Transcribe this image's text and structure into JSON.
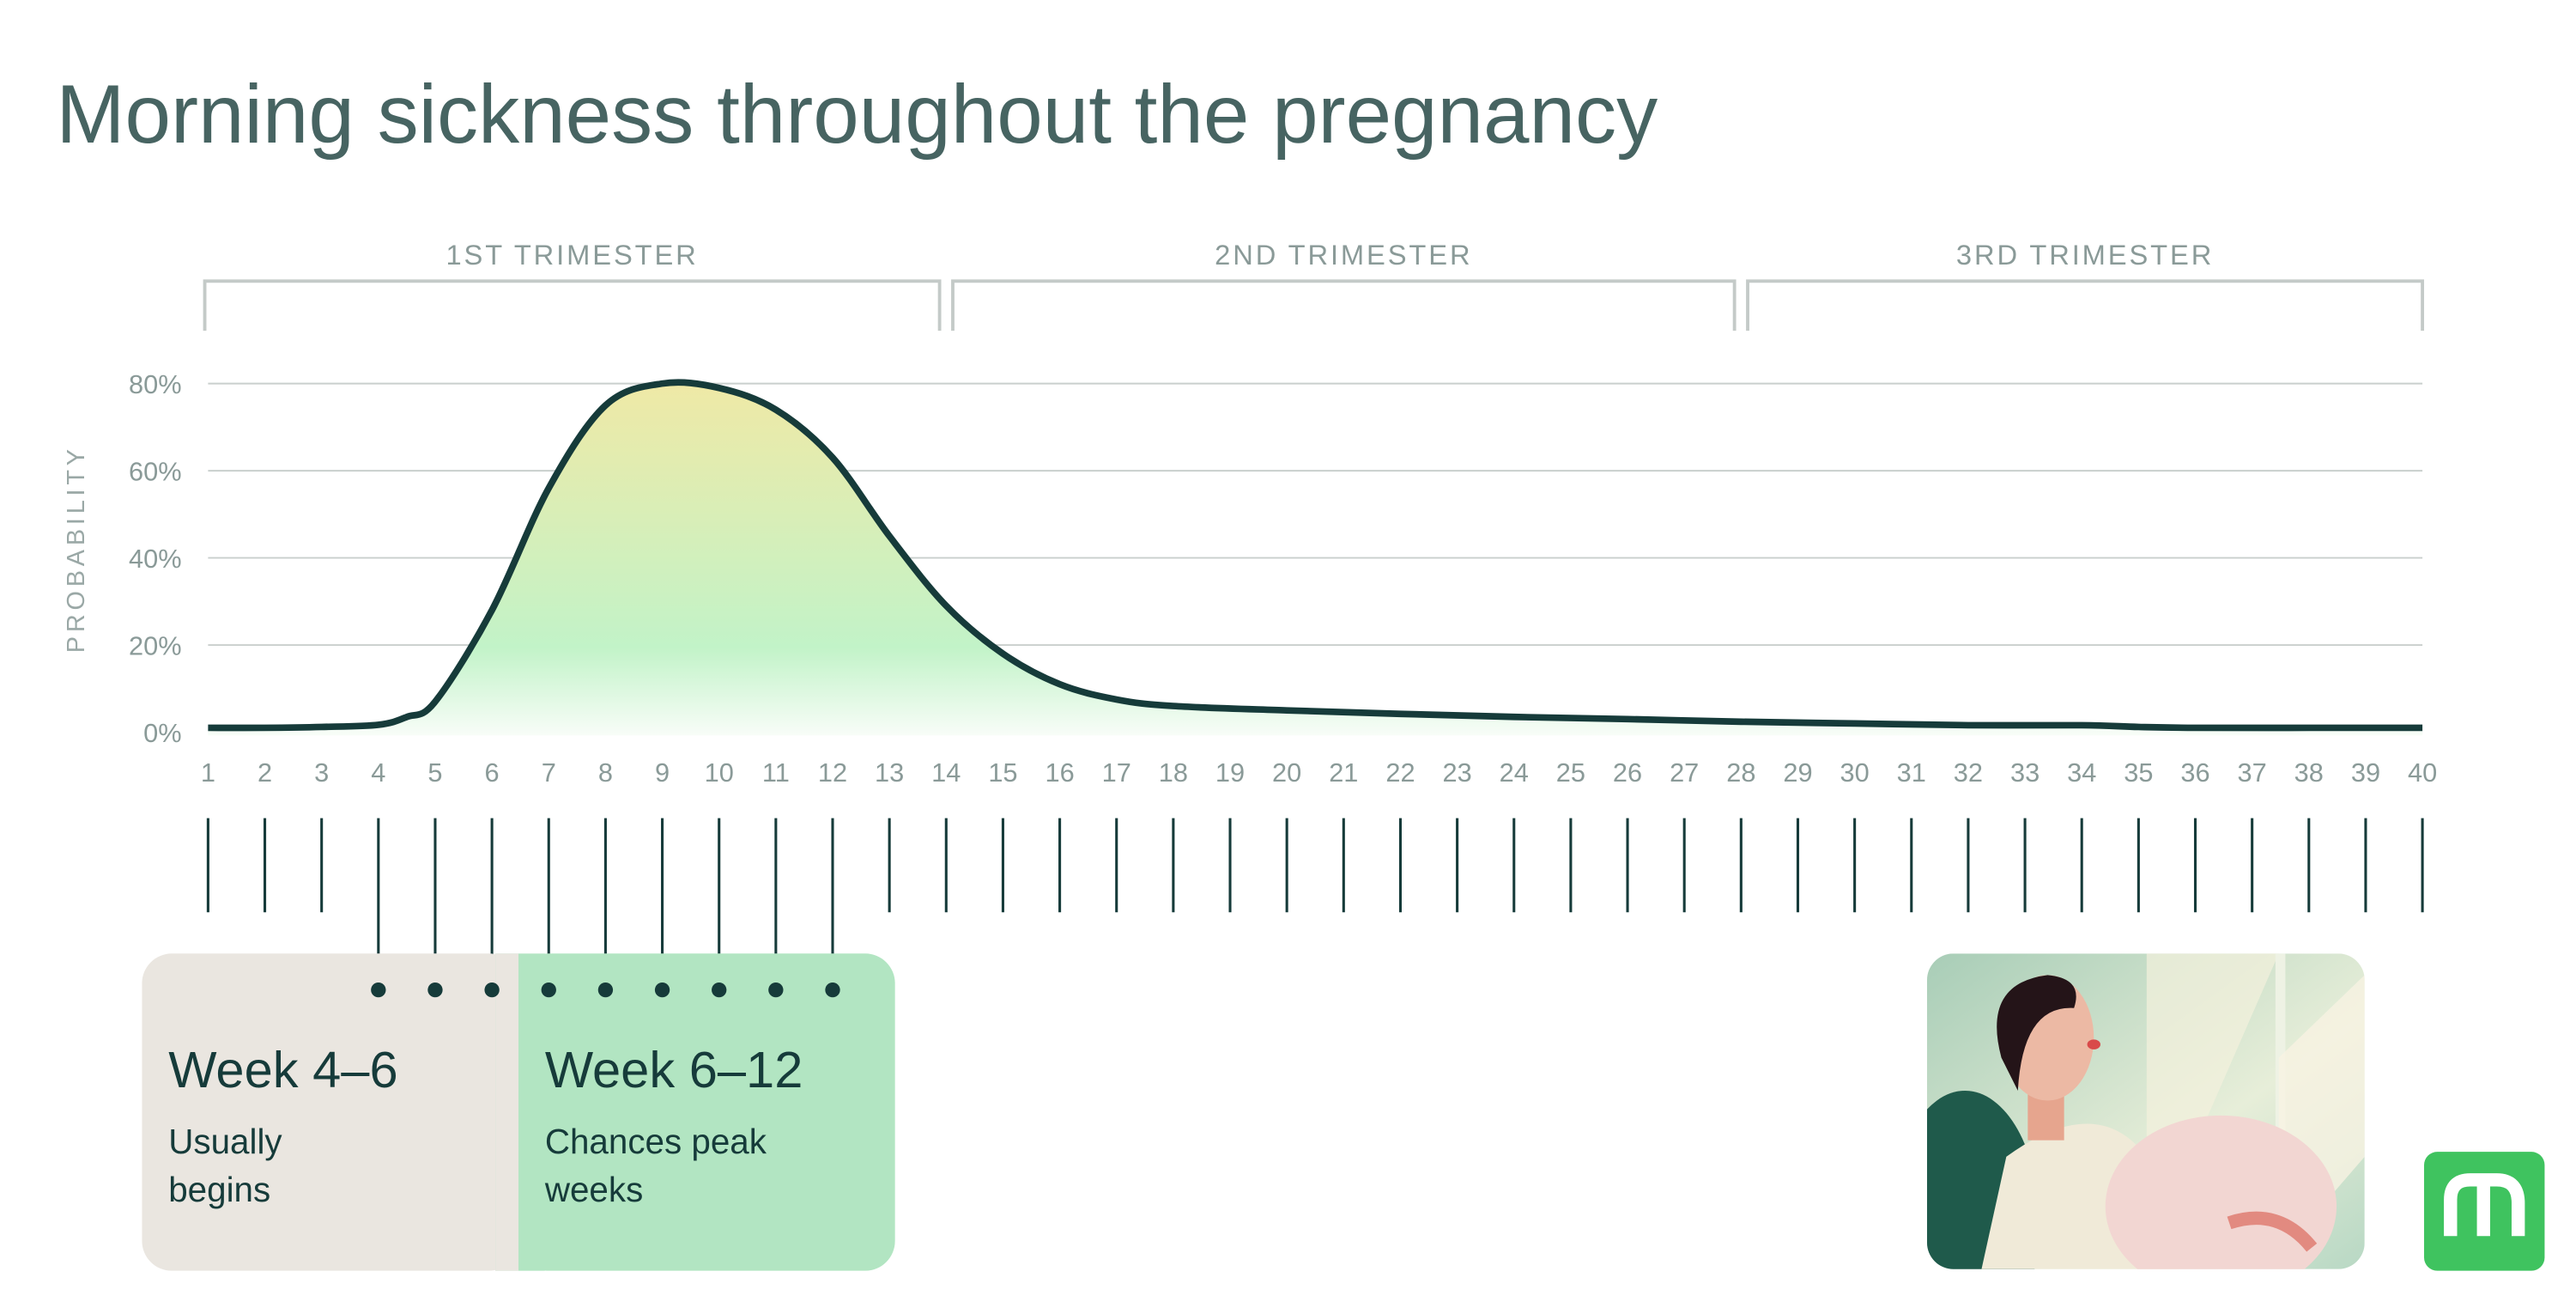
{
  "title": "Morning sickness throughout the pregnancy",
  "trimesters": [
    {
      "label": "1ST TRIMESTER",
      "from_week": 1,
      "to_week": 14
    },
    {
      "label": "2ND TRIMESTER",
      "from_week": 14,
      "to_week": 28
    },
    {
      "label": "3RD TRIMESTER",
      "from_week": 28,
      "to_week": 40
    }
  ],
  "chart_data": {
    "type": "area",
    "title": "Morning sickness throughout the pregnancy",
    "xlabel": "",
    "ylabel": "PROBABILITY",
    "xlim": [
      1,
      40
    ],
    "ylim": [
      0,
      80
    ],
    "y_ticks": [
      "0%",
      "20%",
      "40%",
      "60%",
      "80%"
    ],
    "y_tick_values": [
      0,
      20,
      40,
      60,
      80
    ],
    "x_ticks": [
      1,
      2,
      3,
      4,
      5,
      6,
      7,
      8,
      9,
      10,
      11,
      12,
      13,
      14,
      15,
      16,
      17,
      18,
      19,
      20,
      21,
      22,
      23,
      24,
      25,
      26,
      27,
      28,
      29,
      30,
      31,
      32,
      33,
      34,
      35,
      36,
      37,
      38,
      39,
      40
    ],
    "grid": true,
    "line_color": "#163b3a",
    "fill_colors": [
      "#efe9a6",
      "#c2f3c8",
      "#ffffff"
    ],
    "series": [
      {
        "x": [
          1,
          2,
          3,
          4,
          4.5,
          5,
          6,
          7,
          8,
          9,
          10,
          11,
          12,
          13,
          14,
          15,
          16,
          17,
          18,
          20,
          22,
          24,
          26,
          28,
          30,
          32,
          34,
          35,
          36,
          38,
          40
        ],
        "y": [
          1,
          1,
          1.2,
          1.7,
          3.5,
          7,
          28,
          56,
          75,
          80,
          79,
          74,
          63,
          45,
          29,
          18,
          11,
          7.5,
          6,
          5,
          4.2,
          3.5,
          3,
          2.4,
          2,
          1.6,
          1.6,
          1.2,
          1,
          1,
          1
        ]
      }
    ]
  },
  "highlights": [
    {
      "title": "Week 4–6",
      "text_line1": "Usually",
      "text_line2": "begins",
      "weeks": [
        4,
        5,
        6
      ],
      "color": "#eae6e0"
    },
    {
      "title": "Week 6–12",
      "text_line1": "Chances peak",
      "text_line2": "weeks",
      "weeks": [
        7,
        8,
        9,
        10,
        11,
        12
      ],
      "color": "#b2e5c2"
    }
  ],
  "logo": {
    "letter": "m",
    "color": "#3fc35f"
  }
}
